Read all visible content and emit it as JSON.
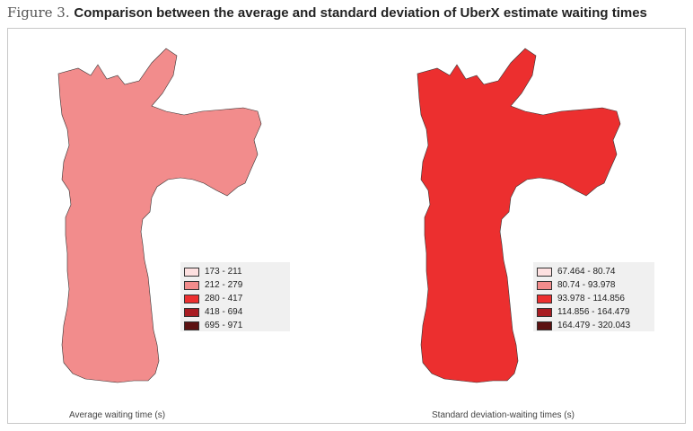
{
  "figure": {
    "number": "Figure 3.",
    "title": "Comparison between the average and standard deviation of UberX estimate waiting times"
  },
  "maps": [
    {
      "caption": "Average waiting time (s)",
      "legend": [
        {
          "label": "173 - 211",
          "color": "#fde0e0"
        },
        {
          "label": "212 - 279",
          "color": "#f28c8c"
        },
        {
          "label": "280 - 417",
          "color": "#ec2f2f"
        },
        {
          "label": "418 - 694",
          "color": "#a81c22"
        },
        {
          "label": "695 - 971",
          "color": "#5c1212"
        }
      ]
    },
    {
      "caption": "Standard deviation-waiting times (s)",
      "legend": [
        {
          "label": "67.464 - 80.74",
          "color": "#fde0e0"
        },
        {
          "label": "80.74 - 93.978",
          "color": "#f28c8c"
        },
        {
          "label": "93.978 - 114.856",
          "color": "#ec2f2f"
        },
        {
          "label": "114.856 - 164.479",
          "color": "#a81c22"
        },
        {
          "label": "164.479 - 320.043",
          "color": "#5c1212"
        }
      ]
    }
  ]
}
